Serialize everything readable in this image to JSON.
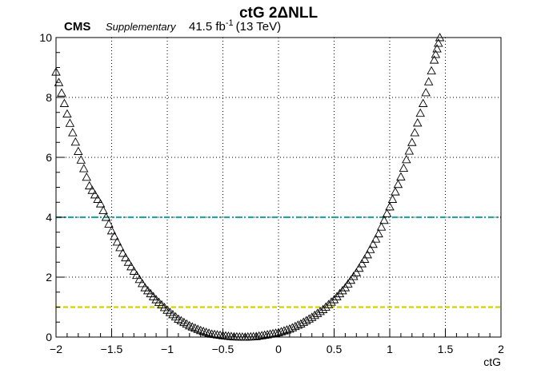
{
  "header": {
    "cms": "CMS",
    "supplementary": "Supplementary",
    "lumi": "41.5 fb",
    "lumi_exp": "-1",
    "energy": "(13 TeV)"
  },
  "chart_data": {
    "type": "scatter",
    "title": "ctG 2ΔNLL",
    "xlabel": "ctG",
    "ylabel": "",
    "xlim": [
      -2,
      2
    ],
    "ylim": [
      0,
      10
    ],
    "xticks": [
      -2,
      -1.5,
      -1,
      -0.5,
      0,
      0.5,
      1,
      1.5,
      2
    ],
    "yticks": [
      0,
      2,
      4,
      6,
      8,
      10
    ],
    "xtick_labels": [
      "−2",
      "−1.5",
      "−1",
      "−0.5",
      "0",
      "0.5",
      "1",
      "1.5",
      "2"
    ],
    "ytick_labels": [
      "0",
      "2",
      "4",
      "6",
      "8",
      "10"
    ],
    "grid": true,
    "marker": "open-triangle",
    "series": [
      {
        "marker_color": "#000000",
        "x": [
          -2.0,
          -1.9,
          -1.8,
          -1.7,
          -1.6,
          -1.5,
          -1.4,
          -1.3,
          -1.2,
          -1.1,
          -1.0,
          -0.9,
          -0.8,
          -0.7,
          -0.6,
          -0.5,
          -0.4,
          -0.3,
          -0.2,
          -0.1,
          0.0,
          0.1,
          0.2,
          0.3,
          0.4,
          0.5,
          0.6,
          0.7,
          0.8,
          0.9,
          1.0,
          1.1,
          1.2,
          1.3,
          1.4,
          1.45
        ],
        "y": [
          8.85,
          7.45,
          6.2,
          5.05,
          4.45,
          3.55,
          2.8,
          2.2,
          1.65,
          1.25,
          0.9,
          0.6,
          0.38,
          0.22,
          0.1,
          0.05,
          0.01,
          0.0,
          0.02,
          0.08,
          0.15,
          0.27,
          0.44,
          0.66,
          0.92,
          1.25,
          1.65,
          2.15,
          2.75,
          3.45,
          4.35,
          5.35,
          6.5,
          7.8,
          9.25,
          10.0
        ]
      }
    ],
    "reference_lines": [
      {
        "y": 4,
        "color": "#2aa0a0",
        "style": "dash-dot"
      },
      {
        "y": 1,
        "color": "#d4d000",
        "style": "dashed"
      }
    ]
  }
}
